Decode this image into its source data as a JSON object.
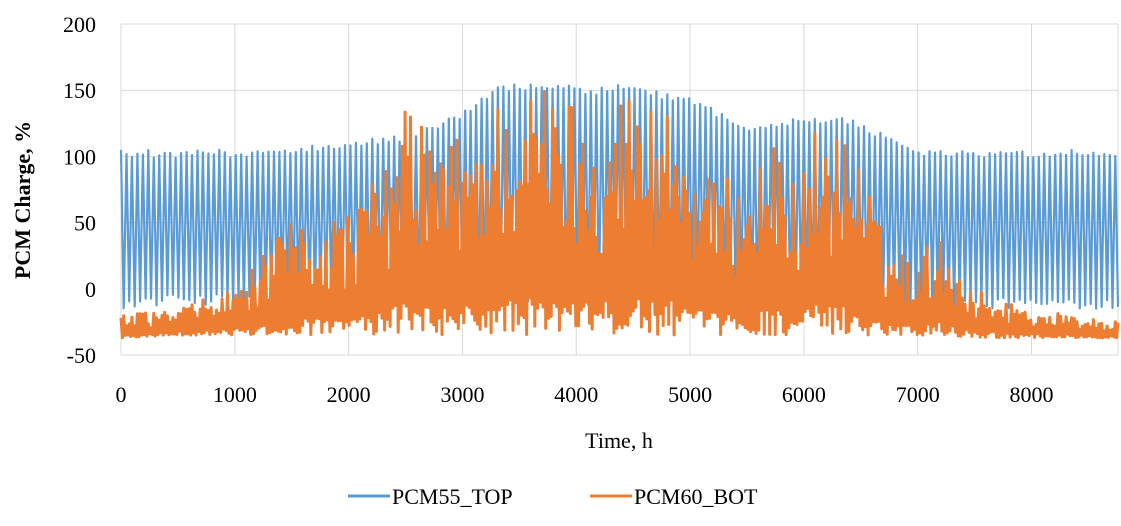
{
  "chart_data": {
    "type": "line",
    "title": "",
    "xlabel": "Time,  h",
    "ylabel": "PCM Charge,  %",
    "xlim": [
      0,
      8760
    ],
    "ylim": [
      -50,
      200
    ],
    "xticks": [
      0,
      1000,
      2000,
      3000,
      4000,
      5000,
      6000,
      7000,
      8000
    ],
    "yticks": [
      -50,
      0,
      50,
      100,
      150,
      200
    ],
    "grid": true,
    "legend": "bottom",
    "series": [
      {
        "name": "PCM55_TOP",
        "color": "#5B9BD5",
        "envelope_x": [
          0,
          500,
          1000,
          1500,
          2000,
          2500,
          3000,
          3300,
          3500,
          3700,
          3900,
          4100,
          4400,
          4700,
          5000,
          5500,
          6000,
          6400,
          7000,
          7500,
          8000,
          8760
        ],
        "envelope_max": [
          105,
          105,
          105,
          107,
          112,
          117,
          135,
          155,
          155,
          155,
          155,
          150,
          155,
          150,
          145,
          125,
          130,
          130,
          105,
          105,
          105,
          105
        ],
        "envelope_min": [
          -15,
          -12,
          -12,
          -12,
          -12,
          -10,
          -12,
          -10,
          -10,
          -12,
          -12,
          -12,
          -12,
          -12,
          -12,
          -12,
          -12,
          -12,
          -15,
          -15,
          -15,
          -15
        ]
      },
      {
        "name": "PCM60_BOT",
        "color": "#ED7D31",
        "envelope_x": [
          0,
          500,
          1000,
          1500,
          2000,
          2300,
          2560,
          2800,
          3000,
          3200,
          3400,
          3650,
          3900,
          4100,
          4440,
          4700,
          4800,
          5000,
          5200,
          5500,
          5700,
          6000,
          6100,
          6400,
          6700,
          7000,
          7150,
          7500,
          8000,
          8760
        ],
        "envelope_max": [
          -20,
          -15,
          0,
          50,
          60,
          90,
          150,
          110,
          120,
          135,
          155,
          155,
          155,
          130,
          155,
          145,
          150,
          110,
          80,
          90,
          110,
          90,
          125,
          120,
          40,
          20,
          45,
          0,
          -15,
          -25
        ],
        "envelope_min": [
          -37,
          -35,
          -35,
          -35,
          -35,
          -35,
          -35,
          -35,
          -35,
          -35,
          -35,
          -35,
          -35,
          -35,
          -35,
          -35,
          -35,
          -35,
          -35,
          -35,
          -35,
          -35,
          -35,
          -35,
          -35,
          -35,
          -35,
          -37,
          -37,
          -37
        ]
      }
    ]
  }
}
